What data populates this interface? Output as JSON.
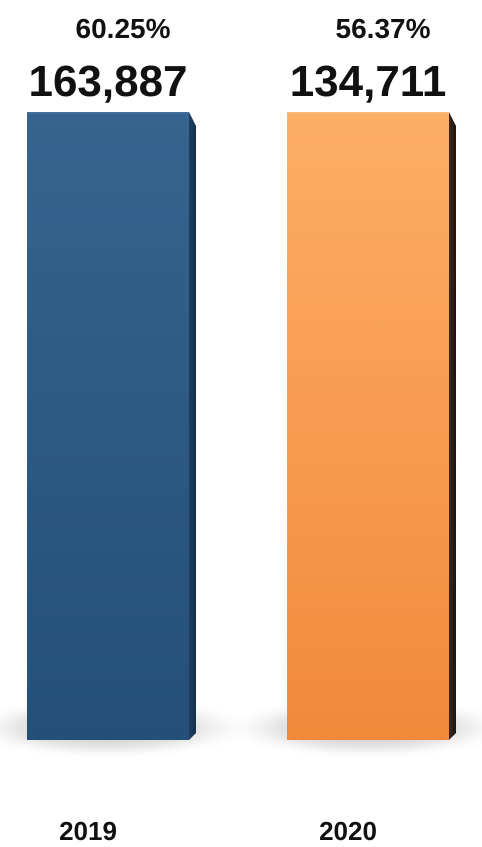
{
  "chart_data": {
    "type": "bar",
    "categories": [
      "2019",
      "2020"
    ],
    "series": [
      {
        "values": [
          163887,
          134711
        ],
        "value_labels": [
          "163,887",
          "134,711"
        ],
        "percent_labels": [
          "60.25%",
          "56.37%"
        ]
      }
    ],
    "grid": false,
    "legend": "none",
    "colors": [
      "#2a5785",
      "#f79a4a"
    ]
  }
}
